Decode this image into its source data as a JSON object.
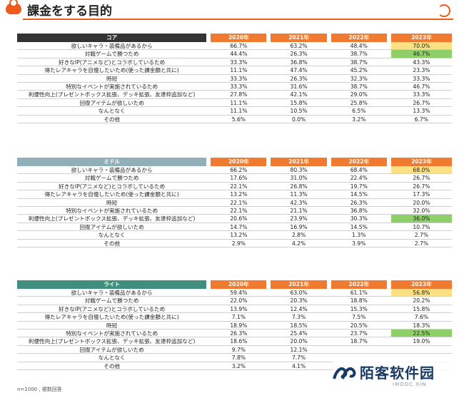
{
  "page": {
    "title": "課金をする目的",
    "footnote": "n=1000 , 複数回答"
  },
  "columns": [
    "2020年",
    "2021年",
    "2022年",
    "2023年"
  ],
  "sections": [
    {
      "name": "コア",
      "rows": [
        {
          "label": "欲しいキャラ・装備品があるから",
          "values": [
            "66.7%",
            "63.2%",
            "48.4%",
            "70.0%"
          ],
          "hl": "yellow"
        },
        {
          "label": "対戦ゲームで勝つため",
          "values": [
            "44.4%",
            "26.3%",
            "38.7%",
            "46.7%"
          ],
          "hl": "green"
        },
        {
          "label": "好きなIP(アニメなど)とコラボしているため",
          "values": [
            "33.3%",
            "36.8%",
            "38.7%",
            "43.3%"
          ]
        },
        {
          "label": "得たレアキャラを自慢したいため(使った課金額と共に)",
          "values": [
            "11.1%",
            "47.4%",
            "45.2%",
            "23.3%"
          ]
        },
        {
          "label": "時短",
          "values": [
            "33.3%",
            "26.3%",
            "32.3%",
            "33.3%"
          ]
        },
        {
          "label": "特別なイベントが実施されているため",
          "values": [
            "33.3%",
            "31.6%",
            "38.7%",
            "46.7%"
          ]
        },
        {
          "label": "利便性向上(プレゼントボックス拡張、デッキ拡張、友達枠追加など)",
          "values": [
            "27.8%",
            "42.1%",
            "29.0%",
            "33.3%"
          ]
        },
        {
          "label": "回復アイテムが欲しいため",
          "values": [
            "11.1%",
            "15.8%",
            "25.8%",
            "26.7%"
          ]
        },
        {
          "label": "なんとなく",
          "values": [
            "11.1%",
            "10.5%",
            "6.5%",
            "13.3%"
          ]
        },
        {
          "label": "その他",
          "values": [
            "5.6%",
            "0.0%",
            "3.2%",
            "6.7%"
          ]
        }
      ]
    },
    {
      "name": "ミドル",
      "rows": [
        {
          "label": "欲しいキャラ・装備品があるから",
          "values": [
            "66.2%",
            "80.3%",
            "68.4%",
            "68.0%"
          ],
          "hl": "yellow"
        },
        {
          "label": "対戦ゲームで勝つため",
          "values": [
            "17.6%",
            "31.0%",
            "22.4%",
            "26.7%"
          ]
        },
        {
          "label": "好きなIP(アニメなど)とコラボしているため",
          "values": [
            "22.1%",
            "26.8%",
            "19.7%",
            "26.7%"
          ]
        },
        {
          "label": "得たレアキャラを自慢したいため(使った課金額と共に)",
          "values": [
            "13.2%",
            "11.3%",
            "14.5%",
            "17.3%"
          ]
        },
        {
          "label": "時短",
          "values": [
            "22.1%",
            "42.3%",
            "26.3%",
            "20.0%"
          ]
        },
        {
          "label": "特別なイベントが実施されているため",
          "values": [
            "22.1%",
            "21.1%",
            "36.8%",
            "32.0%"
          ]
        },
        {
          "label": "利便性向上(プレゼントボックス拡張、デッキ拡張、友達枠追加など)",
          "values": [
            "20.6%",
            "23.9%",
            "30.3%",
            "36.0%"
          ],
          "hl": "green"
        },
        {
          "label": "回復アイテムが欲しいため",
          "values": [
            "14.7%",
            "16.9%",
            "14.5%",
            "10.7%"
          ]
        },
        {
          "label": "なんとなく",
          "values": [
            "13.2%",
            "2.8%",
            "1.3%",
            "2.7%"
          ]
        },
        {
          "label": "その他",
          "values": [
            "2.9%",
            "4.2%",
            "3.9%",
            "2.7%"
          ]
        }
      ]
    },
    {
      "name": "ライト",
      "rows": [
        {
          "label": "欲しいキャラ・装備品があるから",
          "values": [
            "59.4%",
            "63.0%",
            "61.1%",
            "56.8%"
          ],
          "hl": "yellow"
        },
        {
          "label": "対戦ゲームで勝つため",
          "values": [
            "22.0%",
            "20.3%",
            "18.8%",
            "20.2%"
          ]
        },
        {
          "label": "好きなIP(アニメなど)とコラボしているため",
          "values": [
            "13.9%",
            "12.4%",
            "15.3%",
            "15.8%"
          ]
        },
        {
          "label": "得たレアキャラを自慢したいため(使った課金額と共に)",
          "values": [
            "7.1%",
            "7.3%",
            "7.5%",
            "7.6%"
          ]
        },
        {
          "label": "時短",
          "values": [
            "18.9%",
            "18.5%",
            "20.5%",
            "18.3%"
          ]
        },
        {
          "label": "特別なイベントが実施されているため",
          "values": [
            "26.3%",
            "25.4%",
            "23.7%",
            "22.5%"
          ],
          "hl": "green"
        },
        {
          "label": "利便性向上(プレゼントボックス拡張、デッキ拡張、友達枠追加など)",
          "values": [
            "18.6%",
            "20.0%",
            "18.7%",
            "19.0%"
          ]
        },
        {
          "label": "回復アイテムが欲しいため",
          "values": [
            "9.7%",
            "12.1%",
            "",
            ""
          ]
        },
        {
          "label": "なんとなく",
          "values": [
            "7.8%",
            "7.7%",
            "",
            ""
          ]
        },
        {
          "label": "その他",
          "values": [
            "3.2%",
            "4.1%",
            "",
            ""
          ]
        }
      ]
    }
  ],
  "watermark": {
    "text": "陌客软件园",
    "sub": "IMOOC.XIN"
  },
  "colors": {
    "accent": "#ef5b1c",
    "header_orange": "#f07a30",
    "highlight_yellow": "#fbe183",
    "highlight_green": "#8fcf6a"
  }
}
